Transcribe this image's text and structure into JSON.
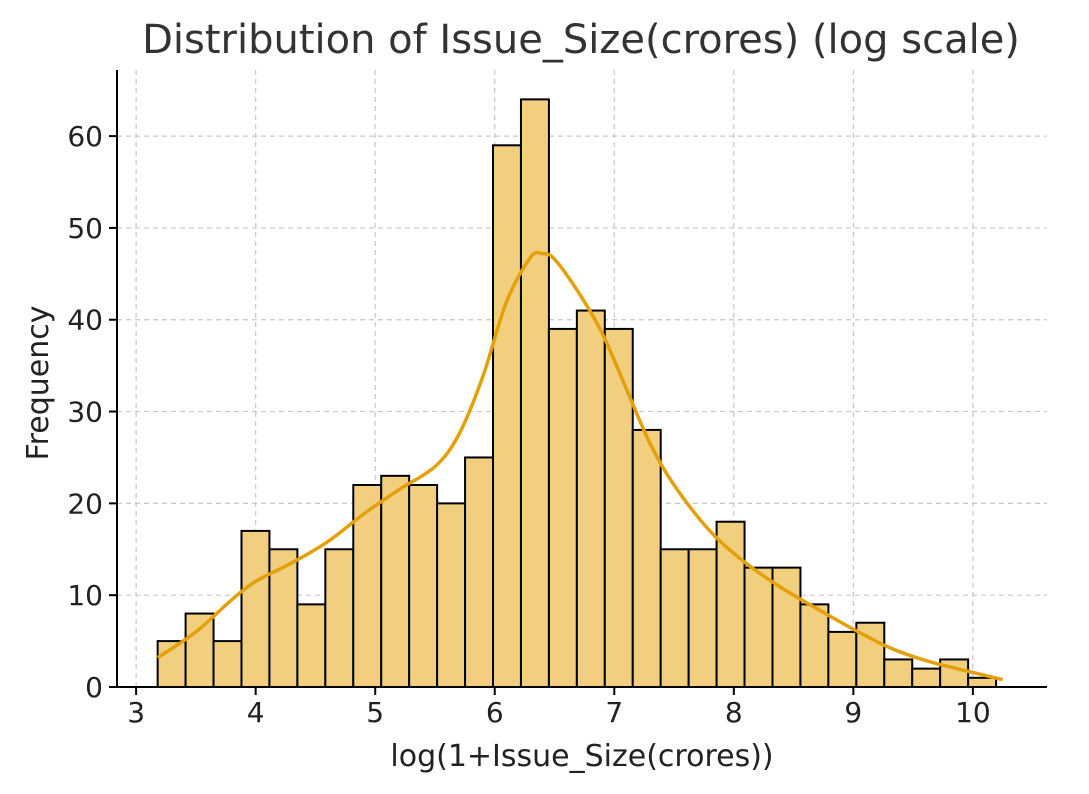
{
  "chart_data": {
    "type": "bar",
    "title": "Distribution of Issue_Size(crores) (log scale)",
    "xlabel": "log(1+Issue_Size(crores))",
    "ylabel": "Frequency",
    "xlim": [
      2.84,
      10.62
    ],
    "ylim": [
      0,
      67.2
    ],
    "xticks": [
      "3",
      "4",
      "5",
      "6",
      "7",
      "8",
      "9",
      "10"
    ],
    "yticks": [
      "0",
      "10",
      "20",
      "30",
      "40",
      "50",
      "60"
    ],
    "grid": true,
    "bins": {
      "start": 3.18,
      "width": 0.2338,
      "counts": [
        5,
        8,
        5,
        17,
        15,
        9,
        15,
        22,
        23,
        22,
        20,
        25,
        59,
        64,
        39,
        41,
        39,
        28,
        15,
        15,
        18,
        13,
        13,
        9,
        6,
        7,
        3,
        2,
        3,
        1
      ]
    },
    "kde": {
      "x": [
        3.18,
        3.5,
        3.8,
        4.0,
        4.3,
        4.6,
        4.9,
        5.2,
        5.5,
        5.7,
        5.9,
        6.1,
        6.3,
        6.4,
        6.5,
        6.7,
        6.9,
        7.1,
        7.3,
        7.5,
        7.8,
        8.1,
        8.4,
        8.7,
        9.0,
        9.3,
        9.6,
        9.9,
        10.25
      ],
      "y": [
        3.2,
        6.0,
        9.5,
        11.5,
        13.5,
        15.8,
        18.8,
        21.5,
        24.0,
        27.5,
        33.8,
        42.0,
        46.8,
        47.2,
        46.6,
        43.0,
        38.5,
        32.5,
        26.5,
        22.0,
        17.0,
        13.5,
        10.8,
        8.5,
        6.3,
        4.3,
        2.9,
        1.9,
        0.8
      ]
    },
    "colors": {
      "bar_fill": "#f2cf7f",
      "bar_edge": "#000000",
      "kde": "#e3a008"
    }
  }
}
